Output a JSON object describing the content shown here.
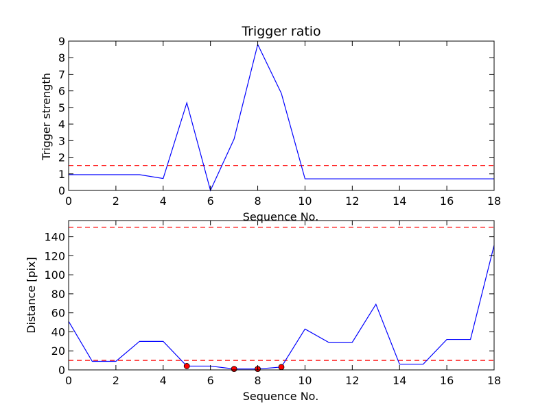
{
  "chart_data": [
    {
      "type": "line",
      "title": "Trigger ratio",
      "xlabel": "Sequence No.",
      "ylabel": "Trigger strength",
      "xlim": [
        0,
        18
      ],
      "ylim": [
        0,
        9
      ],
      "xticks": [
        0,
        2,
        4,
        6,
        8,
        10,
        12,
        14,
        16,
        18
      ],
      "yticks": [
        0,
        1,
        2,
        3,
        4,
        5,
        6,
        7,
        8,
        9
      ],
      "grid": false,
      "line_color": "#0000ff",
      "threshold_color": "#ff0000",
      "x": [
        0,
        1,
        2,
        3,
        4,
        5,
        6,
        7,
        8,
        9,
        10,
        11,
        12,
        13,
        14,
        15,
        16,
        17,
        18
      ],
      "y": [
        0.95,
        0.95,
        0.95,
        0.95,
        0.72,
        5.28,
        0.0,
        3.1,
        8.8,
        5.85,
        0.7,
        0.7,
        0.7,
        0.7,
        0.7,
        0.7,
        0.7,
        0.7,
        0.7
      ],
      "thresholds": [
        1.5
      ]
    },
    {
      "type": "line",
      "title": "",
      "xlabel": "Sequence No.",
      "ylabel": "Distance [pix]",
      "xlim": [
        0,
        18
      ],
      "ylim": [
        0,
        157
      ],
      "xticks": [
        0,
        2,
        4,
        6,
        8,
        10,
        12,
        14,
        16,
        18
      ],
      "yticks": [
        0,
        20,
        40,
        60,
        80,
        100,
        120,
        140
      ],
      "grid": false,
      "line_color": "#0000ff",
      "threshold_color": "#ff0000",
      "marker_color": "#ff0000",
      "x": [
        0,
        1,
        2,
        3,
        4,
        5,
        6,
        7,
        8,
        9,
        10,
        11,
        12,
        13,
        14,
        15,
        16,
        17,
        18
      ],
      "y": [
        51,
        9,
        9,
        30,
        30,
        4,
        4,
        1,
        1,
        3,
        43,
        29,
        29,
        69,
        6,
        6,
        32,
        32,
        131
      ],
      "thresholds": [
        10,
        150
      ],
      "markers": [
        {
          "x": 5,
          "y": 4
        },
        {
          "x": 7,
          "y": 1
        },
        {
          "x": 8,
          "y": 1
        },
        {
          "x": 9,
          "y": 3
        }
      ]
    }
  ]
}
